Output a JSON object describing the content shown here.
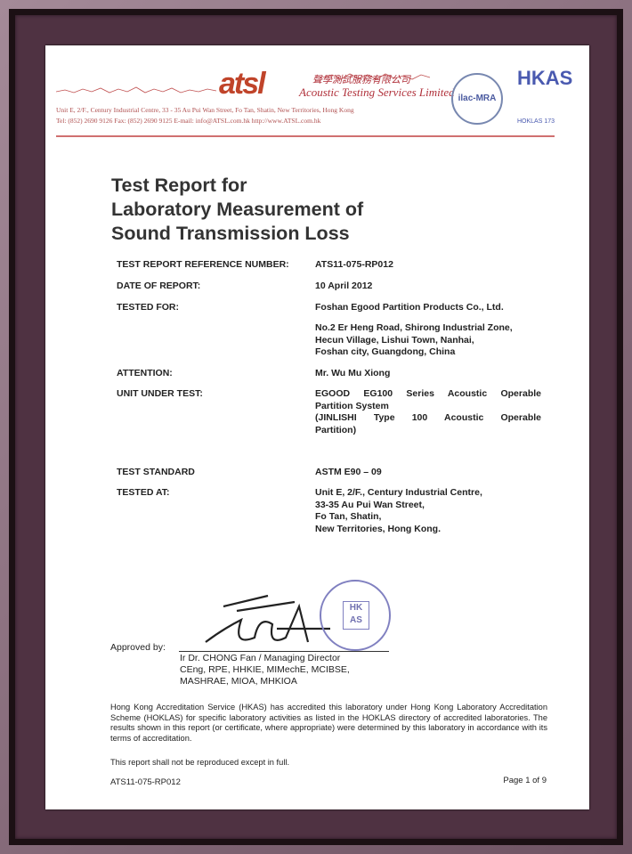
{
  "header": {
    "logo_text": "atsl",
    "company_cn": "聲學測試服務有限公司",
    "company_en": "Acoustic Testing Services Limited",
    "address": "Unit E, 2/F., Century Industrial Centre, 33 - 35 Au Pui Wan Street, Fo Tan, Shatin, New Territories, Hong Kong",
    "contact": "Tel: (852) 2690 9126     Fax: (852) 2690 9125     E-mail: info@ATSL.com.hk     http://www.ATSL.com.hk",
    "ilac_text": "ilac-MRA",
    "hkas_text": "HKAS",
    "hoklas_text": "HOKLAS 173",
    "brand_color": "#c0442a"
  },
  "title_lines": [
    "Test Report for",
    "Laboratory Measurement of",
    "Sound Transmission Loss"
  ],
  "fields": [
    {
      "label": "TEST REPORT REFERENCE NUMBER:",
      "value": [
        "ATS11-075-RP012"
      ]
    },
    {
      "label": "DATE OF REPORT:",
      "value": [
        "10 April 2012"
      ]
    },
    {
      "label": "TESTED FOR:",
      "value": [
        "Foshan Egood Partition Products Co., Ltd."
      ]
    },
    {
      "label": "",
      "value": [
        "No.2 Er Heng Road, Shirong Industrial Zone,",
        "Hecun Village, Lishui Town, Nanhai,",
        "Foshan city, Guangdong, China"
      ]
    },
    {
      "label": "ATTENTION:",
      "value": [
        "Mr. Wu Mu Xiong"
      ]
    },
    {
      "label": "UNIT UNDER TEST:",
      "value": [
        "EGOOD EG100 Series Acoustic Operable",
        "Partition System",
        "(JINLISHI Type 100 Acoustic Operable",
        "Partition)"
      ]
    },
    {
      "label": "TEST STANDARD",
      "value": [
        "ASTM E90 – 09"
      ]
    },
    {
      "label": "TESTED AT:",
      "value": [
        "Unit E, 2/F., Century Industrial Centre,",
        "33-35 Au Pui Wan Street,",
        "Fo Tan, Shatin,",
        "New Territories, Hong Kong."
      ]
    }
  ],
  "approval": {
    "label": "Approved by:",
    "signatory": [
      "Ir Dr. CHONG Fan / Managing Director",
      "CEng, RPE, HHKIE, MIMechE, MCIBSE,",
      "MASHRAE, MIOA, MHKIOA"
    ],
    "stamp_text": "Acoustic Testing Services Limited"
  },
  "accreditation": "Hong Kong Accreditation Service (HKAS) has accredited this laboratory under Hong Kong Laboratory Accreditation Scheme (HOKLAS) for specific laboratory activities as listed in the HOKLAS directory of accredited laboratories. The results shown in this report (or certificate, where appropriate) were determined by this laboratory in accordance with its terms of accreditation.",
  "reproduction_note": "This report shall not be reproduced except in full.",
  "footer": {
    "reference": "ATS11-075-RP012",
    "page": "Page 1 of 9"
  }
}
